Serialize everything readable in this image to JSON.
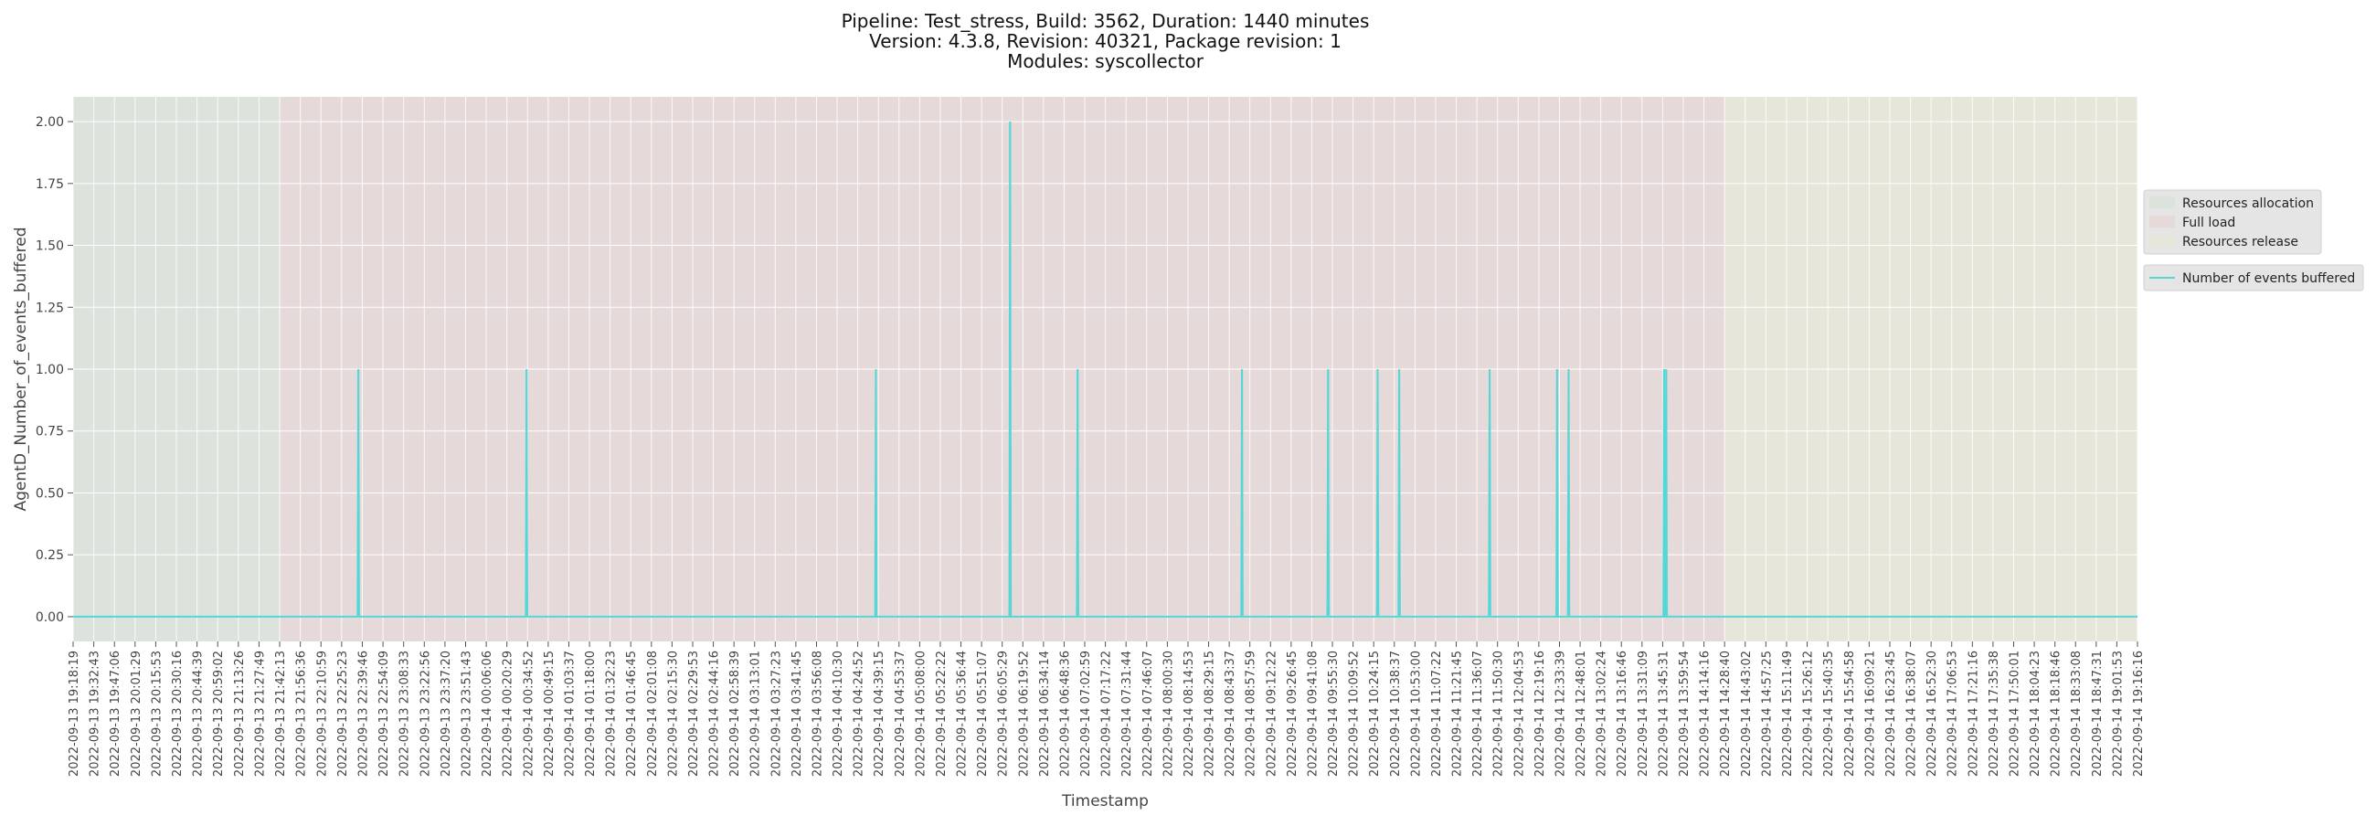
{
  "chart_data": {
    "type": "line",
    "title": [
      "Pipeline: Test_stress, Build: 3562, Duration: 1440 minutes",
      "Version: 4.3.8, Revision: 40321, Package revision: 1",
      "Modules: syscollector"
    ],
    "xlabel": "Timestamp",
    "ylabel": "AgentD_Number_of_events_buffered",
    "ylim": [
      -0.1,
      2.1
    ],
    "yticks": [
      "0.00",
      "0.25",
      "0.50",
      "0.75",
      "1.00",
      "1.25",
      "1.50",
      "1.75",
      "2.00"
    ],
    "x_start": "2022-09-13 19:18:19",
    "x_end": "2022-09-14 19:16:16",
    "grid": true,
    "legend_position": "right",
    "colors": {
      "plot_bg": "#e5e5e5",
      "resources_allocation": "#dbe3dc",
      "full_load": "#e6d9da",
      "resources_release": "#e6e6da",
      "series": "#56d7d7"
    },
    "xticks": [
      "2022-09-13 19:18:19",
      "2022-09-13 19:32:43",
      "2022-09-13 19:47:06",
      "2022-09-13 20:01:29",
      "2022-09-13 20:15:53",
      "2022-09-13 20:30:16",
      "2022-09-13 20:44:39",
      "2022-09-13 20:59:02",
      "2022-09-13 21:13:26",
      "2022-09-13 21:27:49",
      "2022-09-13 21:42:13",
      "2022-09-13 21:56:36",
      "2022-09-13 22:10:59",
      "2022-09-13 22:25:23",
      "2022-09-13 22:39:46",
      "2022-09-13 22:54:09",
      "2022-09-13 23:08:33",
      "2022-09-13 23:22:56",
      "2022-09-13 23:37:20",
      "2022-09-13 23:51:43",
      "2022-09-14 00:06:06",
      "2022-09-14 00:20:29",
      "2022-09-14 00:34:52",
      "2022-09-14 00:49:15",
      "2022-09-14 01:03:37",
      "2022-09-14 01:18:00",
      "2022-09-14 01:32:23",
      "2022-09-14 01:46:45",
      "2022-09-14 02:01:08",
      "2022-09-14 02:15:30",
      "2022-09-14 02:29:53",
      "2022-09-14 02:44:16",
      "2022-09-14 02:58:39",
      "2022-09-14 03:13:01",
      "2022-09-14 03:27:23",
      "2022-09-14 03:41:45",
      "2022-09-14 03:56:08",
      "2022-09-14 04:10:30",
      "2022-09-14 04:24:52",
      "2022-09-14 04:39:15",
      "2022-09-14 04:53:37",
      "2022-09-14 05:08:00",
      "2022-09-14 05:22:22",
      "2022-09-14 05:36:44",
      "2022-09-14 05:51:07",
      "2022-09-14 06:05:29",
      "2022-09-14 06:19:52",
      "2022-09-14 06:34:14",
      "2022-09-14 06:48:36",
      "2022-09-14 07:02:59",
      "2022-09-14 07:17:22",
      "2022-09-14 07:31:44",
      "2022-09-14 07:46:07",
      "2022-09-14 08:00:30",
      "2022-09-14 08:14:53",
      "2022-09-14 08:29:15",
      "2022-09-14 08:43:37",
      "2022-09-14 08:57:59",
      "2022-09-14 09:12:22",
      "2022-09-14 09:26:45",
      "2022-09-14 09:41:08",
      "2022-09-14 09:55:30",
      "2022-09-14 10:09:52",
      "2022-09-14 10:24:15",
      "2022-09-14 10:38:37",
      "2022-09-14 10:53:00",
      "2022-09-14 11:07:22",
      "2022-09-14 11:21:45",
      "2022-09-14 11:36:07",
      "2022-09-14 11:50:30",
      "2022-09-14 12:04:53",
      "2022-09-14 12:19:16",
      "2022-09-14 12:33:39",
      "2022-09-14 12:48:01",
      "2022-09-14 13:02:24",
      "2022-09-14 13:16:46",
      "2022-09-14 13:31:09",
      "2022-09-14 13:45:31",
      "2022-09-14 13:59:54",
      "2022-09-14 14:14:16",
      "2022-09-14 14:28:40",
      "2022-09-14 14:43:02",
      "2022-09-14 14:57:25",
      "2022-09-14 15:11:49",
      "2022-09-14 15:26:12",
      "2022-09-14 15:40:35",
      "2022-09-14 15:54:58",
      "2022-09-14 16:09:21",
      "2022-09-14 16:23:45",
      "2022-09-14 16:38:07",
      "2022-09-14 16:52:30",
      "2022-09-14 17:06:53",
      "2022-09-14 17:21:16",
      "2022-09-14 17:35:38",
      "2022-09-14 17:50:01",
      "2022-09-14 18:04:23",
      "2022-09-14 18:18:46",
      "2022-09-14 18:33:08",
      "2022-09-14 18:47:31",
      "2022-09-14 19:01:53",
      "2022-09-14 19:16:16"
    ],
    "phases": [
      {
        "name": "Resources allocation",
        "start": "2022-09-13 19:18:19",
        "end": "2022-09-13 21:42:13"
      },
      {
        "name": "Full load",
        "start": "2022-09-13 21:42:13",
        "end": "2022-09-14 14:28:40"
      },
      {
        "name": "Resources release",
        "start": "2022-09-14 14:28:40",
        "end": "2022-09-14 19:16:16"
      }
    ],
    "series": [
      {
        "name": "Number of events buffered",
        "baseline": 0,
        "spikes": [
          {
            "x": "2022-09-13 22:37:00",
            "y": 1
          },
          {
            "x": "2022-09-14 00:34:10",
            "y": 1
          },
          {
            "x": "2022-09-14 04:37:30",
            "y": 1
          },
          {
            "x": "2022-09-14 06:11:00",
            "y": 2
          },
          {
            "x": "2022-09-14 06:58:00",
            "y": 1
          },
          {
            "x": "2022-09-14 08:52:30",
            "y": 1
          },
          {
            "x": "2022-09-14 09:52:30",
            "y": 1
          },
          {
            "x": "2022-09-14 10:27:00",
            "y": 1
          },
          {
            "x": "2022-09-14 10:42:00",
            "y": 1
          },
          {
            "x": "2022-09-14 11:45:00",
            "y": 1
          },
          {
            "x": "2022-09-14 12:32:00",
            "y": 1
          },
          {
            "x": "2022-09-14 12:40:00",
            "y": 1
          },
          {
            "x": "2022-09-14 13:46:30",
            "y": 1
          },
          {
            "x": "2022-09-14 13:48:00",
            "y": 1
          }
        ]
      }
    ]
  }
}
